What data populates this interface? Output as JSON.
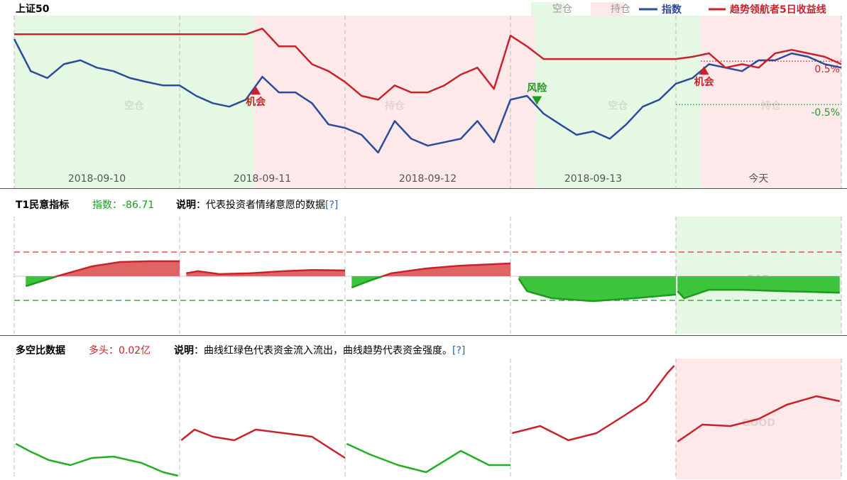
{
  "chart_data": [
    {
      "type": "line",
      "title": "上证50",
      "region_labels": [
        "空仓",
        "持仓"
      ],
      "region_colors": [
        "#e4f8e4",
        "#fde9e9"
      ],
      "regions": [
        {
          "kind": 0,
          "start": 0,
          "end": 1.45
        },
        {
          "kind": 1,
          "start": 1.45,
          "end": 3.15
        },
        {
          "kind": 0,
          "start": 3.15,
          "end": 4.15
        },
        {
          "kind": 1,
          "start": 4.15,
          "end": 5
        }
      ],
      "x": [
        0,
        0.1,
        0.2,
        0.3,
        0.4,
        0.5,
        0.6,
        0.7,
        0.8,
        0.9,
        1,
        1.1,
        1.2,
        1.3,
        1.4,
        1.5,
        1.6,
        1.7,
        1.8,
        1.9,
        2,
        2.1,
        2.2,
        2.3,
        2.4,
        2.5,
        2.6,
        2.7,
        2.8,
        2.9,
        3,
        3.1,
        3.2,
        3.3,
        3.4,
        3.5,
        3.6,
        3.7,
        3.8,
        3.9,
        4,
        4.1,
        4.2,
        4.3,
        4.4,
        4.5,
        4.6,
        4.7,
        4.8,
        4.9,
        5
      ],
      "series": [
        {
          "name": "指数",
          "color": "#2b4c9b",
          "values": [
            1.01,
            0.27,
            0.11,
            0.43,
            0.52,
            0.35,
            0.27,
            0.11,
            0.02,
            -0.06,
            -0.06,
            -0.3,
            -0.47,
            -0.55,
            -0.39,
            0.14,
            -0.22,
            -0.22,
            -0.47,
            -0.96,
            -1.04,
            -1.2,
            -1.61,
            -0.88,
            -1.29,
            -1.45,
            -1.37,
            -1.29,
            -0.88,
            -1.37,
            -0.39,
            -0.3,
            -0.71,
            -0.96,
            -1.2,
            -1.12,
            -1.29,
            -0.96,
            -0.55,
            -0.39,
            -0.02,
            0.11,
            0.43,
            0.35,
            0.27,
            0.52,
            0.52,
            0.68,
            0.6,
            0.43,
            0.35
          ]
        },
        {
          "name": "趋势领航者5日收益线",
          "color": "#c8232c",
          "values": [
            1.12,
            1.12,
            1.12,
            1.12,
            1.12,
            1.12,
            1.12,
            1.12,
            1.12,
            1.12,
            1.12,
            1.12,
            1.12,
            1.12,
            1.12,
            1.25,
            0.84,
            0.84,
            0.43,
            0.27,
            0.02,
            -0.3,
            -0.39,
            -0.06,
            -0.22,
            -0.22,
            -0.06,
            0.19,
            0.35,
            -0.14,
            1.09,
            0.84,
            0.55,
            0.55,
            0.55,
            0.55,
            0.55,
            0.55,
            0.55,
            0.55,
            0.55,
            0.6,
            0.68,
            0.35,
            0.43,
            0.35,
            0.68,
            0.76,
            0.68,
            0.6,
            0.43
          ]
        }
      ],
      "xlim": [
        0,
        5
      ],
      "ylim": [
        -2.43,
        1.55
      ],
      "xticks": [
        {
          "value": 0.5,
          "label": "2018-09-10"
        },
        {
          "value": 1.5,
          "label": "2018-09-11"
        },
        {
          "value": 2.5,
          "label": "2018-09-12"
        },
        {
          "value": 3.5,
          "label": "2018-09-13"
        },
        {
          "value": 4.5,
          "label": "今天"
        }
      ],
      "day_boundaries": [
        1,
        2,
        3,
        4
      ],
      "reference_lines": [
        {
          "value": 0.5,
          "label": "0.5%",
          "color": "#c8232c",
          "start": 4.15
        },
        {
          "value": -0.5,
          "label": "-0.5%",
          "color": "#2a9a2a",
          "start": 4
        }
      ],
      "annotations": [
        {
          "label": "机会",
          "x": 1.46,
          "y": -0.19,
          "kind": "up",
          "color": "#c8232c"
        },
        {
          "label": "风险",
          "x": 3.16,
          "y": -0.39,
          "kind": "down",
          "color": "#1e9a1e"
        },
        {
          "label": "机会",
          "x": 4.17,
          "y": 0.27,
          "kind": "up",
          "color": "#c8232c"
        }
      ]
    },
    {
      "type": "area",
      "title": "T1民意指标",
      "indicator": "指数：-86.71",
      "indicator_color": "#1e9a1e",
      "note_label": "说明",
      "note": "：代表投资者情绪意愿的数据",
      "help": "[?]",
      "xlim": [
        0,
        5
      ],
      "ylim": [
        -238,
        247
      ],
      "day_boundaries": [
        1,
        2,
        3,
        4
      ],
      "colors": {
        "up": "#e06464",
        "down": "#3cc43c",
        "up_line": "#c8232c",
        "down_line": "#1e9a1e"
      },
      "reference_lines": [
        {
          "value": 100,
          "color": "#e03030"
        },
        {
          "value": -100,
          "color": "#22aa22"
        }
      ],
      "highlight": {
        "start": 4,
        "end": 5,
        "label": "BAD",
        "color": "#e4f8e4"
      },
      "segments": [
        {
          "x": [
            0.07,
            0.26,
            0.47,
            0.64,
            0.82,
            1.0
          ],
          "values": [
            -41,
            0,
            41,
            59,
            62,
            62
          ]
        },
        {
          "x": [
            1.04,
            1.11,
            1.24,
            1.42,
            1.63,
            1.8,
            2.0
          ],
          "values": [
            12,
            21,
            9,
            12,
            21,
            26,
            24
          ]
        },
        {
          "x": [
            2.04,
            2.15,
            2.28,
            2.49,
            2.7,
            3.0
          ],
          "values": [
            -47,
            -18,
            12,
            32,
            44,
            53
          ]
        },
        {
          "x": [
            3.05,
            3.1,
            3.25,
            3.5,
            3.75,
            4.0
          ],
          "values": [
            -10,
            -62,
            -91,
            -103,
            -91,
            -76
          ]
        },
        {
          "x": [
            4.01,
            4.05,
            4.2,
            4.4,
            4.65,
            4.99
          ],
          "values": [
            -62,
            -91,
            -56,
            -56,
            -62,
            -68
          ]
        }
      ]
    },
    {
      "type": "line",
      "title": "多空比数据",
      "indicator": "多头：0.02亿",
      "indicator_color": "#c8232c",
      "note_label": "说明",
      "note": "：曲线红绿色代表资金流入流出，曲线趋势代表资金强度。",
      "help": "[?]",
      "xlim": [
        0,
        5
      ],
      "ylim": [
        -0.75,
        0.95
      ],
      "day_boundaries": [
        1,
        2,
        3,
        4
      ],
      "highlight": {
        "start": 4,
        "end": 5,
        "label": "GOOD",
        "color": "#fde9e9"
      },
      "segments": [
        {
          "color": "#22b022",
          "x": [
            0.01,
            0.09,
            0.21,
            0.34,
            0.47,
            0.6,
            0.77,
            0.9,
            0.99
          ],
          "values": [
            -0.25,
            -0.35,
            -0.48,
            -0.55,
            -0.45,
            -0.43,
            -0.52,
            -0.65,
            -0.7
          ]
        },
        {
          "color": "#c8232c",
          "x": [
            1.01,
            1.09,
            1.2,
            1.33,
            1.46,
            1.63,
            1.8,
            2.0
          ],
          "values": [
            -0.2,
            -0.05,
            -0.15,
            -0.2,
            -0.05,
            -0.1,
            -0.15,
            -0.45
          ]
        },
        {
          "color": "#22b022",
          "x": [
            2.01,
            2.15,
            2.32,
            2.49,
            2.7,
            2.87,
            3.0
          ],
          "values": [
            -0.25,
            -0.4,
            -0.55,
            -0.65,
            -0.35,
            -0.55,
            -0.55
          ]
        },
        {
          "color": "#c8232c",
          "x": [
            3.01,
            3.18,
            3.35,
            3.52,
            3.69,
            3.82,
            3.95,
            3.99
          ],
          "values": [
            -0.1,
            0,
            -0.2,
            -0.1,
            0.15,
            0.35,
            0.75,
            0.85
          ]
        },
        {
          "color": "#c8232c",
          "x": [
            4.01,
            4.16,
            4.33,
            4.5,
            4.67,
            4.85,
            4.99
          ],
          "values": [
            -0.22,
            0.02,
            0,
            0.1,
            0.3,
            0.42,
            0.35
          ]
        }
      ]
    }
  ]
}
